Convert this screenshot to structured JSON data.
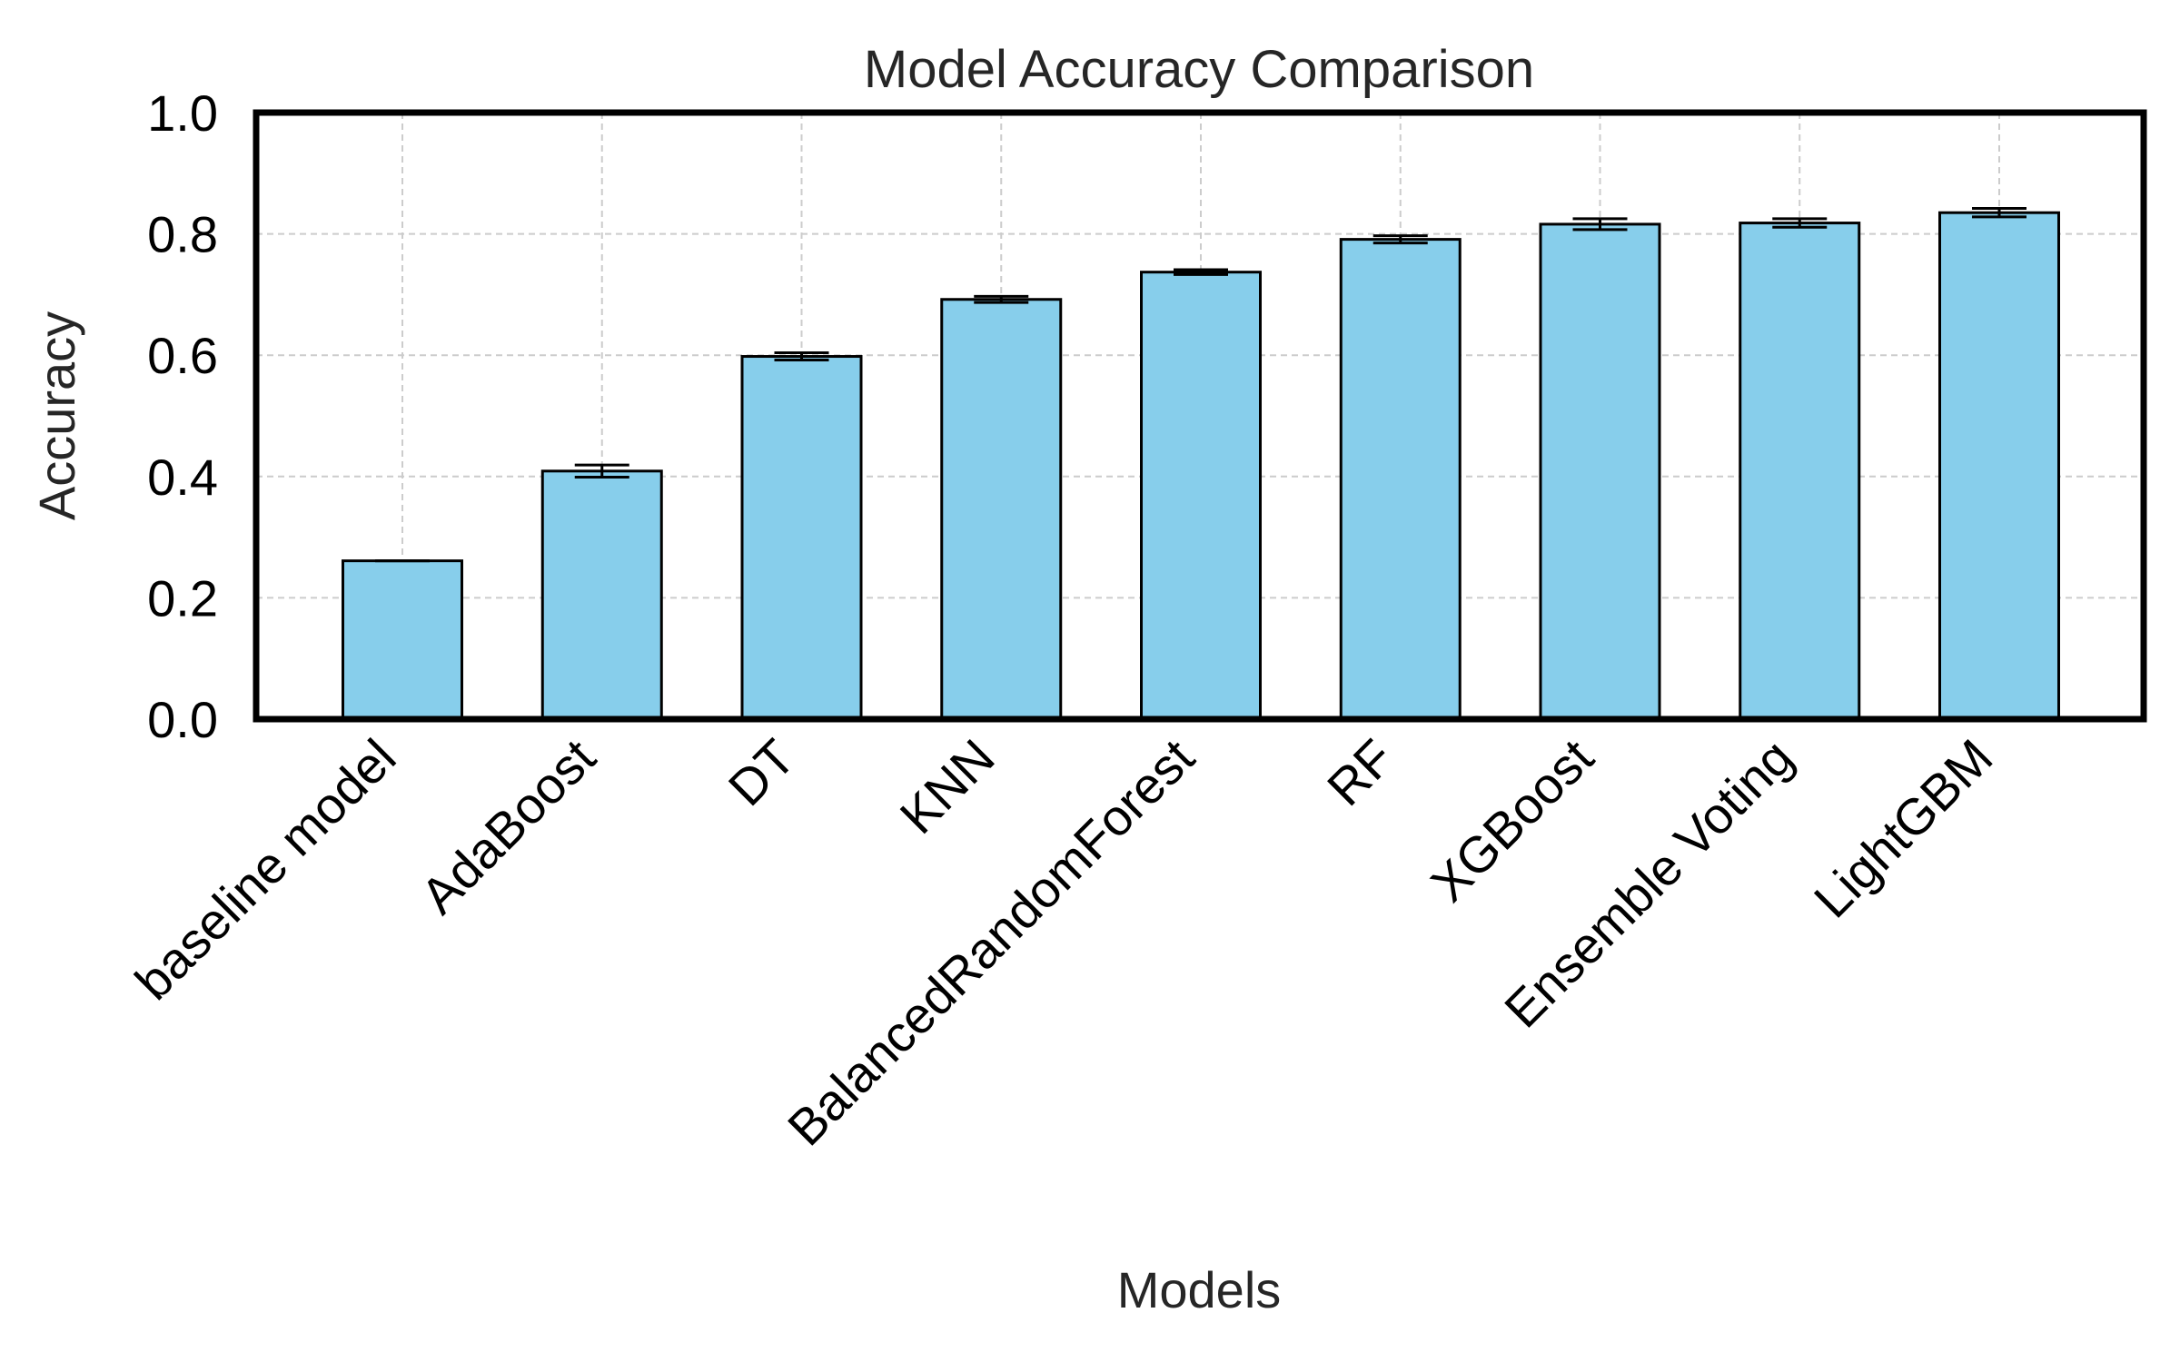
{
  "chart_data": {
    "type": "bar",
    "title": "Model Accuracy Comparison",
    "xlabel": "Models",
    "ylabel": "Accuracy",
    "categories": [
      "baseline model",
      "AdaBoost",
      "DT",
      "KNN",
      "BalancedRandomForest",
      "RF",
      "XGBoost",
      "Ensemble Voting",
      "LightGBM"
    ],
    "values": [
      0.261,
      0.409,
      0.598,
      0.692,
      0.737,
      0.791,
      0.816,
      0.818,
      0.835
    ],
    "errors": [
      0.0,
      0.01,
      0.006,
      0.005,
      0.004,
      0.006,
      0.009,
      0.007,
      0.007
    ],
    "ylim": [
      0.0,
      1.0
    ],
    "yticks": [
      "0.0",
      "0.2",
      "0.4",
      "0.6",
      "0.8",
      "1.0"
    ],
    "ytick_values": [
      0.0,
      0.2,
      0.4,
      0.6,
      0.8,
      1.0
    ],
    "grid": true,
    "legend": "none",
    "colors": {
      "bar_fill": "#87ceeb",
      "bar_edge": "#000000",
      "grid": "#cccccc",
      "axes": "#000000"
    }
  }
}
